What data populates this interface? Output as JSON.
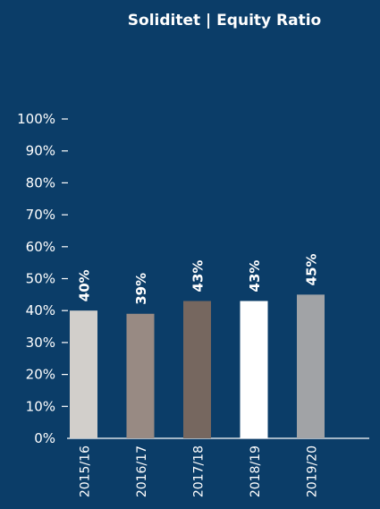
{
  "chart_data": {
    "type": "bar",
    "title": "Soliditet | Equity Ratio",
    "categories": [
      "2015/16",
      "2016/17",
      "2017/18",
      "2018/19",
      "2019/20"
    ],
    "values": [
      40,
      39,
      43,
      43,
      45
    ],
    "value_labels": [
      "40%",
      "39%",
      "43%",
      "43%",
      "45%"
    ],
    "y_ticks": [
      "0%",
      "10%",
      "20%",
      "30%",
      "40%",
      "50%",
      "60%",
      "70%",
      "80%",
      "90%",
      "100%"
    ],
    "ylim": [
      0,
      100
    ],
    "xlabel": "",
    "ylabel": "",
    "grid": false,
    "bar_colors": [
      "#d2cfcb",
      "#988a83",
      "#76675f",
      "#ffffff",
      "#a1a3a6"
    ]
  }
}
